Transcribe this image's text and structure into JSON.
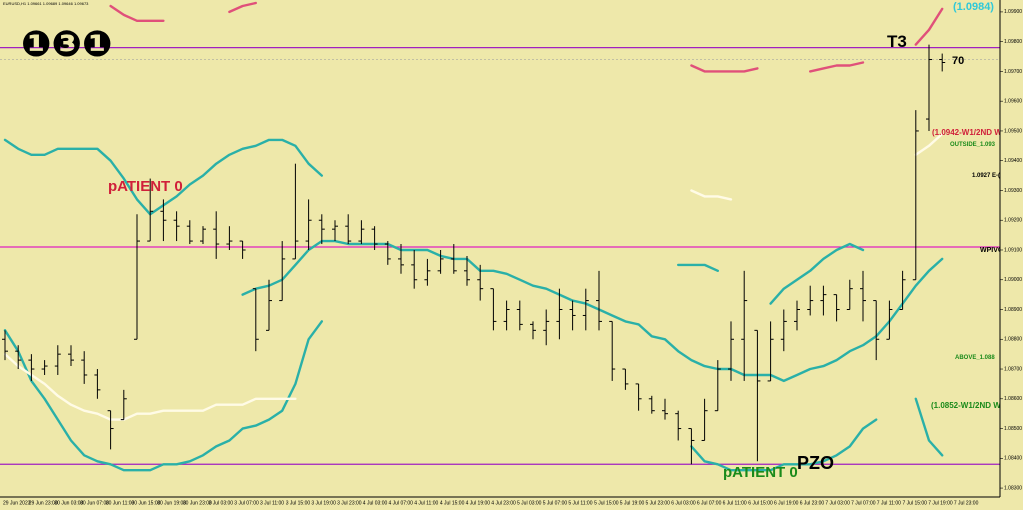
{
  "chart_data": {
    "type": "ohlc",
    "header": "EURUSD,H1  1.09661 1.09689 1.09646 1.09673",
    "open": [
      1.088,
      1.0876,
      1.0873,
      1.087,
      1.0871,
      1.0875,
      1.0873,
      1.0868,
      1.0856,
      1.0853,
      1.088,
      1.0913,
      1.0923,
      1.092,
      1.0918,
      1.0913,
      1.0917,
      1.0912,
      1.0913,
      1.0897,
      1.0883,
      1.0893,
      1.0907,
      1.0913,
      1.092,
      1.0917,
      1.0918,
      1.0913,
      1.0917,
      1.0912,
      1.0907,
      1.0905,
      1.09,
      1.0903,
      1.0907,
      1.0903,
      1.09,
      1.0897,
      1.0886,
      1.089,
      1.0885,
      1.0883,
      1.0886,
      1.089,
      1.0888,
      1.0893,
      1.0886,
      1.087,
      1.0865,
      1.086,
      1.0856,
      1.0855,
      1.085,
      1.0846,
      1.0856,
      1.087,
      1.088,
      1.0883,
      1.0866,
      1.088,
      1.0886,
      1.089,
      1.0893,
      1.0895,
      1.089,
      1.0897,
      1.0893,
      1.088,
      1.089,
      1.09,
      1.0954,
      1.0974
    ],
    "high": [
      1.0883,
      1.0878,
      1.0875,
      1.0873,
      1.0878,
      1.0878,
      1.0876,
      1.087,
      1.0856,
      1.0863,
      1.0922,
      1.0934,
      1.0927,
      1.0923,
      1.092,
      1.0918,
      1.0923,
      1.0918,
      1.0913,
      1.0897,
      1.09,
      1.0913,
      1.0939,
      1.0927,
      1.0922,
      1.092,
      1.0922,
      1.092,
      1.0918,
      1.0913,
      1.0912,
      1.091,
      1.0907,
      1.091,
      1.0912,
      1.0908,
      1.0905,
      1.0897,
      1.0893,
      1.0893,
      1.0886,
      1.089,
      1.0897,
      1.0893,
      1.0897,
      1.0903,
      1.0886,
      1.087,
      1.0865,
      1.0861,
      1.086,
      1.0856,
      1.085,
      1.086,
      1.0873,
      1.0886,
      1.0903,
      1.0883,
      1.0886,
      1.089,
      1.0893,
      1.0898,
      1.0898,
      1.0895,
      1.09,
      1.0903,
      1.0893,
      1.0893,
      1.0903,
      1.0957,
      1.0979,
      1.0976
    ],
    "low": [
      1.0873,
      1.087,
      1.0866,
      1.0868,
      1.0868,
      1.0871,
      1.0865,
      1.086,
      1.0843,
      1.0853,
      1.088,
      1.0913,
      1.0913,
      1.0913,
      1.0912,
      1.0912,
      1.0907,
      1.091,
      1.0907,
      1.0876,
      1.0883,
      1.0893,
      1.0907,
      1.091,
      1.0912,
      1.0913,
      1.0912,
      1.0912,
      1.091,
      1.0905,
      1.0902,
      1.0897,
      1.0898,
      1.0902,
      1.0902,
      1.0898,
      1.0893,
      1.0883,
      1.0883,
      1.0883,
      1.088,
      1.0878,
      1.088,
      1.0883,
      1.0883,
      1.0883,
      1.0866,
      1.0863,
      1.0856,
      1.0855,
      1.0853,
      1.0846,
      1.0838,
      1.0846,
      1.0856,
      1.0866,
      1.0866,
      1.0839,
      1.0866,
      1.0876,
      1.0883,
      1.0888,
      1.0888,
      1.0886,
      1.089,
      1.0886,
      1.0873,
      1.088,
      1.089,
      1.09,
      1.095,
      1.097
    ],
    "close": [
      1.0876,
      1.0873,
      1.087,
      1.0871,
      1.0875,
      1.0873,
      1.0868,
      1.0863,
      1.085,
      1.086,
      1.0913,
      1.0923,
      1.092,
      1.0918,
      1.0913,
      1.0917,
      1.0912,
      1.0913,
      1.091,
      1.088,
      1.0893,
      1.0907,
      1.0913,
      1.092,
      1.0917,
      1.0918,
      1.0913,
      1.0917,
      1.0912,
      1.0907,
      1.0905,
      1.09,
      1.0903,
      1.0907,
      1.0903,
      1.09,
      1.0897,
      1.0886,
      1.089,
      1.0885,
      1.0883,
      1.0886,
      1.089,
      1.0888,
      1.0893,
      1.0886,
      1.087,
      1.0865,
      1.086,
      1.0856,
      1.0855,
      1.085,
      1.0846,
      1.0856,
      1.087,
      1.088,
      1.0893,
      1.0866,
      1.088,
      1.0886,
      1.089,
      1.0893,
      1.0895,
      1.089,
      1.0897,
      1.0893,
      1.088,
      1.089,
      1.09,
      1.095,
      1.0974,
      1.0973
    ],
    "bar_color": "#000000",
    "series": [
      {
        "color": "#2ab0a8",
        "values": [
          null,
          null,
          null,
          null,
          null,
          null,
          null,
          null,
          null,
          null,
          null,
          null,
          null,
          null,
          null,
          null,
          null,
          null,
          1.0895,
          1.0897,
          1.0898,
          1.09,
          1.0905,
          1.091,
          1.0913,
          1.0913,
          1.0912,
          1.0912,
          1.0912,
          1.0912,
          1.091,
          1.091,
          1.091,
          1.0908,
          1.0907,
          1.0907,
          1.0903,
          1.0903,
          1.0902,
          1.09,
          1.0898,
          1.0897,
          1.0895,
          1.0893,
          1.0892,
          1.089,
          1.0888,
          1.0886,
          1.0885,
          1.0881,
          1.088,
          1.0876,
          1.0873,
          1.0871,
          1.087,
          1.087,
          1.0868,
          1.0868,
          1.0868,
          1.0866,
          1.0868,
          1.087,
          1.0871,
          1.0873,
          1.0876,
          1.0878,
          1.0881,
          1.0886,
          1.0892,
          1.0898,
          1.0903,
          1.0907
        ]
      },
      {
        "color": "#2ab0a8",
        "values": [
          1.0947,
          1.0944,
          1.0942,
          1.0942,
          1.0944,
          1.0944,
          1.0944,
          1.0944,
          1.094,
          1.0934,
          1.0927,
          1.0922,
          1.0925,
          1.0928,
          1.0932,
          1.0935,
          1.0939,
          1.0942,
          1.0944,
          1.0945,
          1.0947,
          1.0947,
          1.0945,
          1.0939,
          1.0935,
          null,
          null,
          null,
          null,
          null,
          null,
          null,
          null,
          null,
          null,
          null,
          null,
          null,
          null,
          null,
          null,
          null,
          null,
          null,
          null,
          null,
          null,
          null,
          null,
          null,
          null,
          1.0905,
          1.0905,
          1.0905,
          1.0903,
          null,
          null,
          null,
          1.0892,
          1.0897,
          1.09,
          1.0903,
          1.0907,
          1.091,
          1.0912,
          1.091,
          null,
          null,
          null,
          null,
          null,
          null
        ]
      },
      {
        "color": "#2ab0a8",
        "values": [
          1.0883,
          1.0876,
          1.0866,
          1.086,
          1.0853,
          1.0846,
          1.0841,
          1.0839,
          1.0838,
          1.0836,
          1.0836,
          1.0836,
          1.0838,
          1.0838,
          1.0839,
          1.0841,
          1.0844,
          1.0846,
          1.085,
          1.0851,
          1.0853,
          1.0856,
          1.0865,
          1.088,
          1.0886,
          null,
          null,
          null,
          null,
          null,
          null,
          null,
          null,
          null,
          null,
          null,
          null,
          null,
          null,
          null,
          null,
          null,
          null,
          null,
          null,
          null,
          null,
          null,
          null,
          null,
          null,
          null,
          1.0844,
          1.0839,
          1.0838,
          1.0836,
          1.0836,
          1.0836,
          1.0836,
          1.0838,
          1.0838,
          1.0838,
          1.0839,
          1.0841,
          1.0844,
          1.085,
          1.0853,
          null,
          null,
          1.086,
          1.0846,
          1.0841
        ]
      },
      {
        "color": "#fffbe6",
        "values": [
          1.0875,
          1.0871,
          1.0868,
          1.0865,
          1.0861,
          1.0858,
          1.0856,
          1.0855,
          1.0853,
          1.0853,
          1.0855,
          1.0855,
          1.0856,
          1.0856,
          1.0856,
          1.0856,
          1.0858,
          1.0858,
          1.0858,
          1.086,
          1.086,
          1.086,
          1.086,
          null,
          null,
          null,
          null,
          null,
          null,
          null,
          null,
          null,
          null,
          null,
          null,
          null,
          null,
          null,
          null,
          null,
          null,
          null,
          null,
          null,
          null,
          null,
          null,
          null,
          null,
          null,
          null,
          null,
          1.093,
          1.0928,
          1.0928,
          1.0927,
          null,
          null,
          null,
          null,
          null,
          null,
          null,
          null,
          null,
          null,
          null,
          null,
          null,
          1.0942,
          1.0945,
          1.0949
        ]
      },
      {
        "color": "#e0507a",
        "values": [
          null,
          null,
          null,
          null,
          null,
          null,
          null,
          null,
          1.0992,
          1.0989,
          1.0987,
          1.0987,
          1.0987,
          null,
          null,
          null,
          null,
          1.099,
          1.0992,
          1.0993,
          null,
          null,
          null,
          null,
          null,
          null,
          null,
          null,
          null,
          null,
          null,
          null,
          null,
          null,
          null,
          null,
          null,
          null,
          null,
          null,
          null,
          null,
          null,
          null,
          null,
          null,
          null,
          null,
          null,
          null,
          null,
          null,
          1.0972,
          1.097,
          1.097,
          1.097,
          1.097,
          1.0971,
          null,
          null,
          null,
          1.097,
          1.0971,
          1.0972,
          1.0972,
          1.0973,
          null,
          null,
          null,
          1.0979,
          1.0984,
          1.0991
        ]
      }
    ],
    "levels": [
      {
        "value": 1.0978,
        "color": "#a020c0"
      },
      {
        "value": 1.0911,
        "color": "#e020c0"
      },
      {
        "value": 1.0838,
        "color": "#a020c0"
      },
      {
        "value": 1.0974,
        "color": "#a8a8a0",
        "dash": true
      }
    ],
    "ylim": [
      1.0827,
      1.0994
    ],
    "yticks": [
      {
        "value": 1.083,
        "label": "1.08300"
      },
      {
        "value": 1.084,
        "label": "1.08400"
      },
      {
        "value": 1.085,
        "label": "1.08500"
      },
      {
        "value": 1.086,
        "label": "1.08600"
      },
      {
        "value": 1.087,
        "label": "1.08700"
      },
      {
        "value": 1.088,
        "label": "1.08800"
      },
      {
        "value": 1.089,
        "label": "1.08900"
      },
      {
        "value": 1.09,
        "label": "1.09000"
      },
      {
        "value": 1.091,
        "label": "1.09100"
      },
      {
        "value": 1.092,
        "label": "1.09200"
      },
      {
        "value": 1.093,
        "label": "1.09300"
      },
      {
        "value": 1.094,
        "label": "1.09400"
      },
      {
        "value": 1.095,
        "label": "1.09500"
      },
      {
        "value": 1.096,
        "label": "1.09600"
      },
      {
        "value": 1.097,
        "label": "1.09700"
      },
      {
        "value": 1.098,
        "label": "1.09800"
      },
      {
        "value": 1.099,
        "label": "1.09900"
      }
    ],
    "time_labels": [
      "29 Jun 2023",
      "29 Jun 23:00",
      "30 Jun 03:00",
      "30 Jun 07:00",
      "30 Jun 11:00",
      "30 Jun 15:00",
      "30 Jun 19:00",
      "30 Jun 23:00",
      "3 Jul 03:00",
      "3 Jul 07:00",
      "3 Jul 11:00",
      "3 Jul 15:00",
      "3 Jul 19:00",
      "3 Jul 23:00",
      "4 Jul 03:00",
      "4 Jul 07:00",
      "4 Jul 11:00",
      "4 Jul 15:00",
      "4 Jul 19:00",
      "4 Jul 23:00",
      "5 Jul 03:00",
      "5 Jul 07:00",
      "5 Jul 11:00",
      "5 Jul 15:00",
      "5 Jul 19:00",
      "5 Jul 23:00",
      "6 Jul 03:00",
      "6 Jul 07:00",
      "6 Jul 11:00",
      "6 Jul 15:00",
      "6 Jul 19:00",
      "6 Jul 23:00",
      "7 Jul 03:00",
      "7 Jul 07:00",
      "7 Jul 11:00",
      "7 Jul 15:00",
      "7 Jul 19:00",
      "7 Jul 23:00"
    ],
    "annotations": [
      {
        "text": "❶❸❶",
        "color": "#000000"
      },
      {
        "text": "pATIENT 0",
        "color": "#d0203a"
      },
      {
        "text": "T3",
        "color": "#000000"
      },
      {
        "text": "70",
        "color": "#000000"
      },
      {
        "text": "(1.0984)",
        "color": "#30c8d8"
      },
      {
        "text": "(1.0942-W1/2ND W",
        "color": "#d0203a"
      },
      {
        "text": "OUTSIDE_1.093",
        "color": "#1a8a1a"
      },
      {
        "text": "1.0927 E-(",
        "color": "#000000"
      },
      {
        "text": "WPIVO",
        "color": "#000000"
      },
      {
        "text": "ABOVE_1.088",
        "color": "#1a8a1a"
      },
      {
        "text": "(1.0852-W1/2ND W",
        "color": "#1a8a1a"
      },
      {
        "text": "pATIENT 0",
        "color": "#1a8a1a"
      },
      {
        "text": "PZO",
        "color": "#000000"
      }
    ]
  }
}
